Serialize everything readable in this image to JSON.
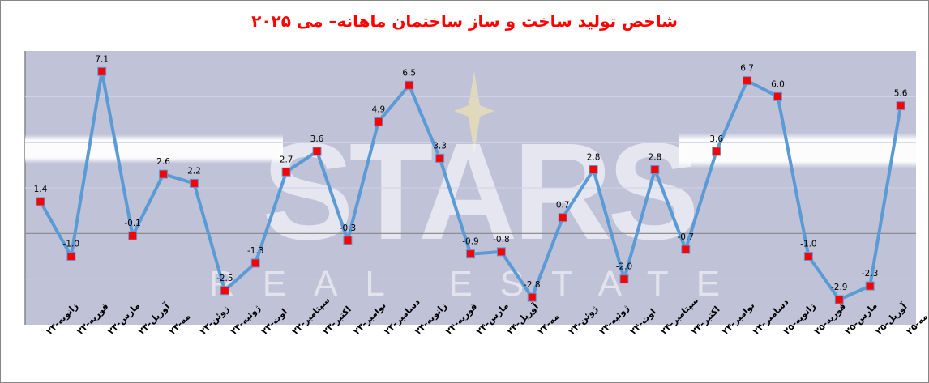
{
  "chart_data": {
    "type": "line",
    "title": "شاخص تولید ساخت و ساز ساختمان ماهانه– می ۲۰۲۵",
    "xlabel": "",
    "ylabel": "",
    "ylim": [
      -4,
      8
    ],
    "grid": true,
    "gridlines_y": [
      -2,
      0,
      2,
      4,
      6
    ],
    "legend": "none",
    "categories": [
      "ژانویه-۲۳",
      "فوریه-۲۳",
      "مارس-۲۳",
      "آوریل-۲۳",
      "مه-۲۳",
      "ژوئن-۲۳",
      "ژوئیه-۲۳",
      "اوت-۲۳",
      "سپتامبر-۲۳",
      "اکتبر-۲۳",
      "نوامبر-۲۳",
      "دسامبر-۲۳",
      "ژانویه-۲۴",
      "فوریه-۲۴",
      "مارس-۲۴",
      "آوریل-۲۴",
      "مه-۲۴",
      "ژوئن-۲۴",
      "ژوئیه-۲۴",
      "اوت-۲۴",
      "سپتامبر-۲۴",
      "اکتبر-۲۴",
      "نوامبر-۲۴",
      "دسامبر-۲۴",
      "ژانویه-۲۵",
      "فوریه-۲۵",
      "مارس-۲۵",
      "آوریل-۲۵",
      "مه-۲۵"
    ],
    "series": [
      {
        "name": "شاخص تولید ساخت و ساز",
        "values": [
          1.4,
          -1.0,
          7.1,
          -0.1,
          2.6,
          2.2,
          -2.5,
          -1.3,
          2.7,
          3.6,
          -0.3,
          4.9,
          6.5,
          3.3,
          -0.9,
          -0.8,
          -2.8,
          0.7,
          2.8,
          -2.0,
          2.8,
          -0.7,
          3.6,
          6.7,
          6.0,
          -1.0,
          -2.9,
          -2.3,
          5.6
        ],
        "data_labels": [
          "1.4",
          "-1.0",
          "7.1",
          "-0.1",
          "2.6",
          "2.2",
          "-2.5",
          "-1.3",
          "2.7",
          "3.6",
          "-0.3",
          "4.9",
          "6.5",
          "3.3",
          "-0.9",
          "-0.8",
          "-2.8",
          "0.7",
          "2.8",
          "-2.0",
          "2.8",
          "-0.7",
          "3.6",
          "6.7",
          "6.0",
          "-1.0",
          "-2.9",
          "-2.3",
          "5.6"
        ],
        "line_color": "#5b9bd5",
        "marker": "square",
        "marker_color": "#ff0000"
      }
    ],
    "colors": {
      "title": "#ff0000",
      "plot_background": "#c0c2d8",
      "zero_line": "#868686",
      "gridline": "#d0d4e6"
    },
    "watermark": {
      "text": "STARS",
      "subtext": "REAL ESTATE"
    }
  }
}
